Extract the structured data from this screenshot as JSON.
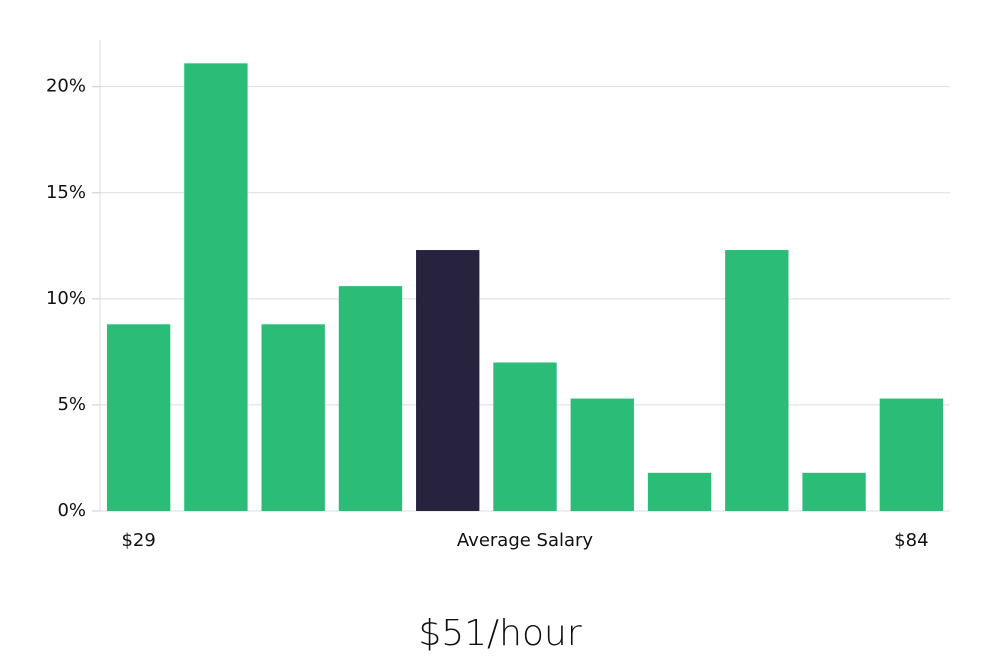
{
  "chart_data": {
    "type": "bar",
    "categories": [
      "$29",
      null,
      null,
      null,
      null,
      null,
      null,
      null,
      null,
      null,
      "$84"
    ],
    "values": [
      8.8,
      21.1,
      8.8,
      10.6,
      12.3,
      7.0,
      5.3,
      1.8,
      12.3,
      1.8,
      5.3
    ],
    "colors": [
      "#2bbd77",
      "#2bbd77",
      "#2bbd77",
      "#2bbd77",
      "#27233f",
      "#2bbd77",
      "#2bbd77",
      "#2bbd77",
      "#2bbd77",
      "#2bbd77",
      "#2bbd77"
    ],
    "ylim": [
      0,
      22.2
    ],
    "yticks": [
      {
        "value": 0,
        "label": "0%"
      },
      {
        "value": 5,
        "label": "5%"
      },
      {
        "value": 10,
        "label": "10%"
      },
      {
        "value": 15,
        "label": "15%"
      },
      {
        "value": 20,
        "label": "20%"
      }
    ],
    "grid": true,
    "annotation": "Average Salary",
    "footer": "$51/hour"
  }
}
